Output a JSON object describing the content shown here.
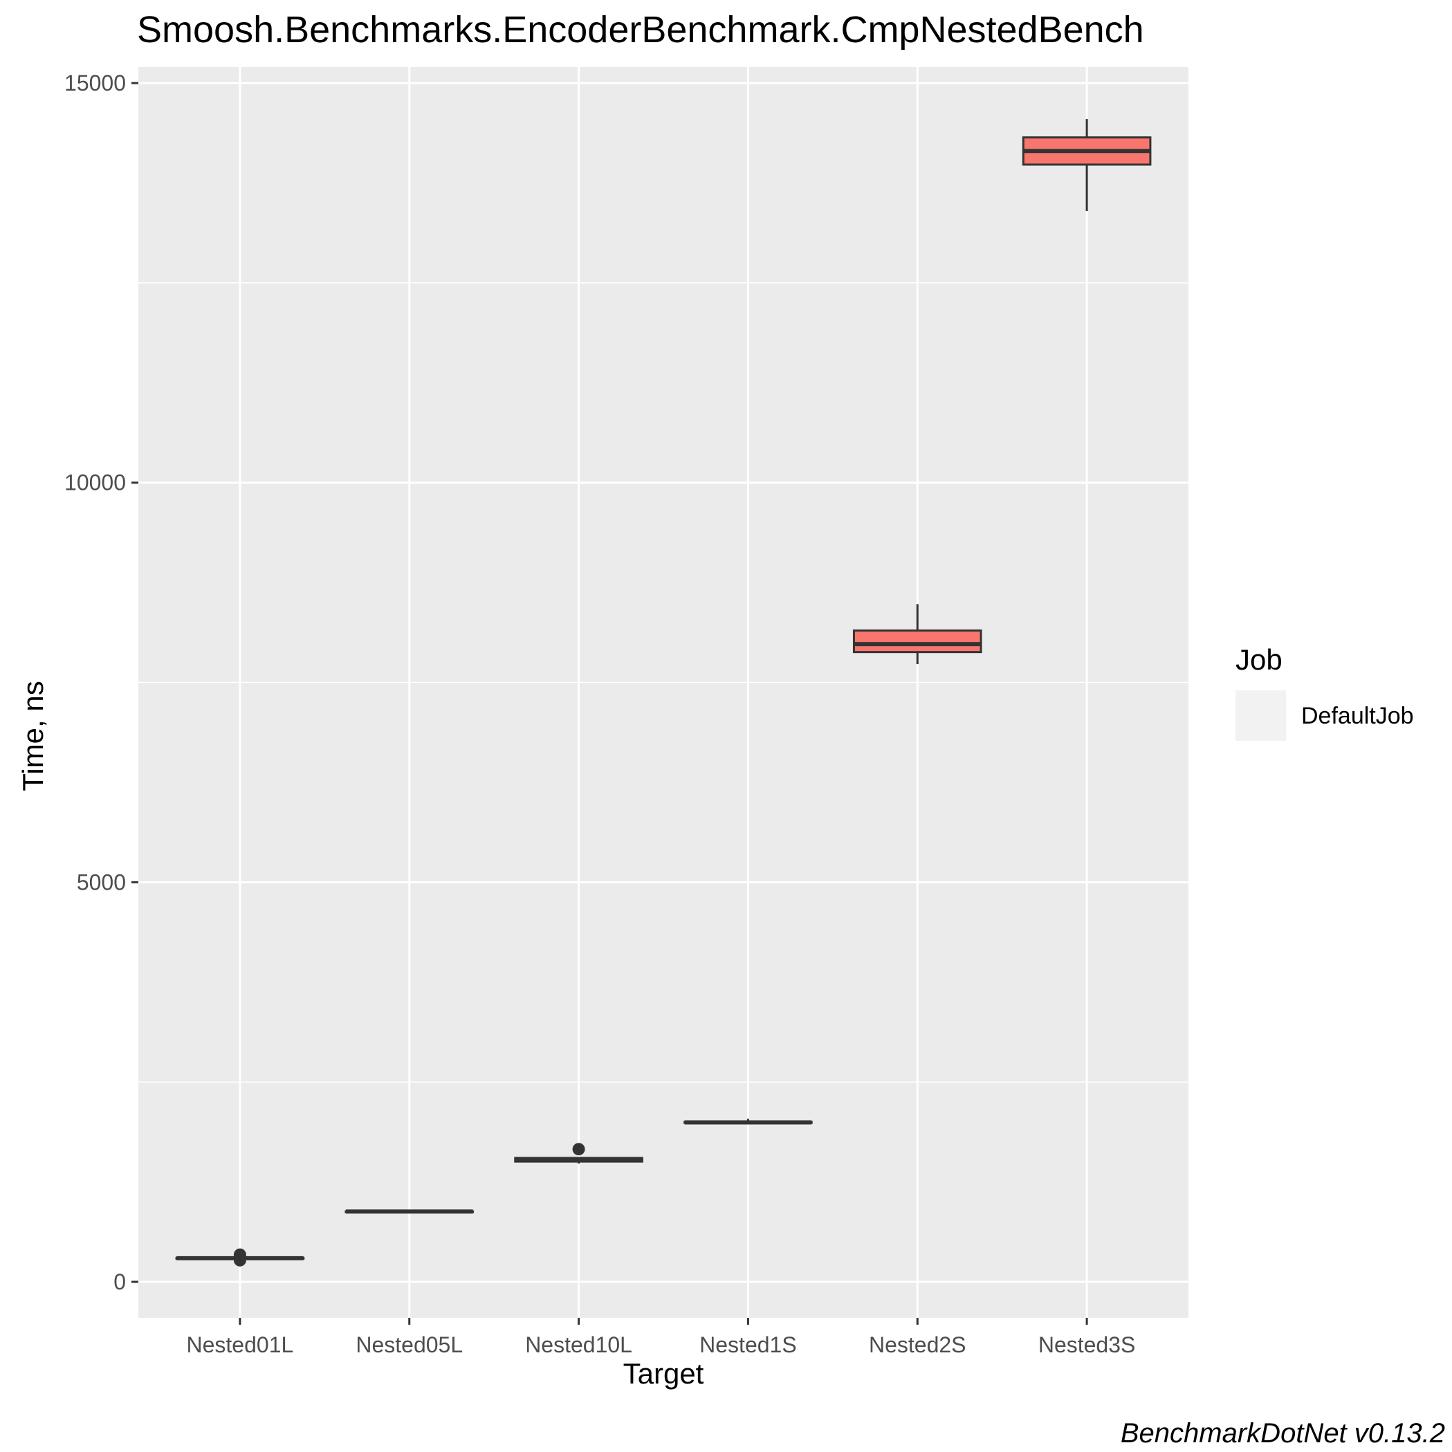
{
  "chart_data": {
    "type": "box",
    "title": "Smoosh.Benchmarks.EncoderBenchmark.CmpNestedBench",
    "xlabel": "Target",
    "ylabel": "Time, ns",
    "ylim": [
      -450,
      15200
    ],
    "yticks": [
      0,
      5000,
      10000,
      15000
    ],
    "y_minor_gridlines": [
      2500,
      7500,
      12500
    ],
    "grid": true,
    "background": "#ebebeb",
    "fill_color": "#f8766d",
    "line_color": "#333333",
    "legend": {
      "title": "Job",
      "entries": [
        "DefaultJob"
      ],
      "position": "right"
    },
    "caption": "BenchmarkDotNet v0.13.2",
    "categories": [
      "Nested01L",
      "Nested05L",
      "Nested10L",
      "Nested1S",
      "Nested2S",
      "Nested3S"
    ],
    "series": [
      {
        "name": "DefaultJob",
        "boxes": [
          {
            "category": "Nested01L",
            "min": 290,
            "q1": 290,
            "median": 295,
            "q3": 300,
            "max": 300,
            "outliers": [
              270,
              300,
              340
            ]
          },
          {
            "category": "Nested05L",
            "min": 875,
            "q1": 878,
            "median": 880,
            "q3": 882,
            "max": 885,
            "outliers": []
          },
          {
            "category": "Nested10L",
            "min": 1480,
            "q1": 1505,
            "median": 1530,
            "q3": 1550,
            "max": 1560,
            "outliers": [
              1660
            ]
          },
          {
            "category": "Nested1S",
            "min": 1985,
            "q1": 1990,
            "median": 1995,
            "q3": 2000,
            "max": 2040,
            "outliers": []
          },
          {
            "category": "Nested2S",
            "min": 7730,
            "q1": 7880,
            "median": 7980,
            "q3": 8150,
            "max": 8480,
            "outliers": []
          },
          {
            "category": "Nested3S",
            "min": 13400,
            "q1": 13980,
            "median": 14150,
            "q3": 14320,
            "max": 14550,
            "outliers": []
          }
        ]
      }
    ]
  }
}
